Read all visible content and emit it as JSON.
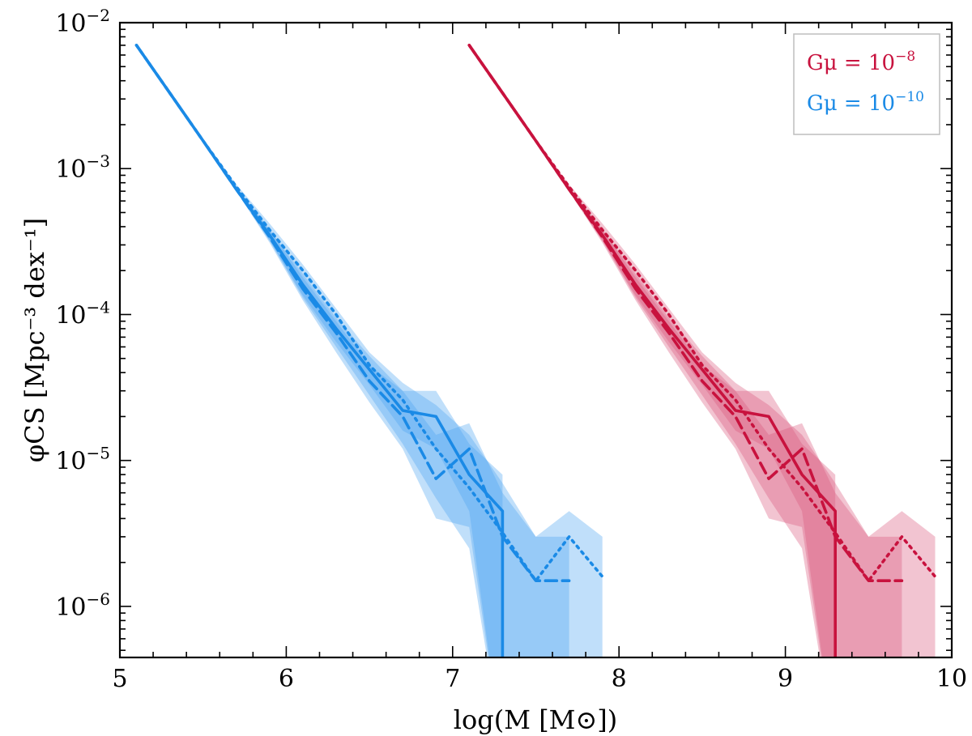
{
  "chart_data": {
    "type": "line",
    "title": "",
    "xlabel": "log(M [M⊙])",
    "ylabel": "φCS [Mpc⁻³ dex⁻¹]",
    "xlim": [
      5,
      10
    ],
    "ylim_log10": [
      -6.35,
      -2
    ],
    "yscale": "log",
    "x_ticks": [
      5,
      6,
      7,
      8,
      9,
      10
    ],
    "y_ticks": [
      {
        "base": "10",
        "exp": "−2",
        "value_log10": -2
      },
      {
        "base": "10",
        "exp": "−3",
        "value_log10": -3
      },
      {
        "base": "10",
        "exp": "−4",
        "value_log10": -4
      },
      {
        "base": "10",
        "exp": "−5",
        "value_log10": -5
      },
      {
        "base": "10",
        "exp": "−6",
        "value_log10": -6
      }
    ],
    "legend": {
      "placement": "top-right",
      "entries": [
        {
          "prefix": "Gμ = 10",
          "exp": "−8",
          "color": "#c8123e"
        },
        {
          "prefix": "Gμ = 10",
          "exp": "−10",
          "color": "#1a8ae6"
        }
      ]
    },
    "series": [
      {
        "group": "Gμ=10^-10",
        "style": "solid",
        "color": "#1a8ae6",
        "x": [
          5.1,
          5.3,
          5.5,
          5.7,
          5.9,
          6.1,
          6.3,
          6.5,
          6.7,
          6.9,
          7.1,
          7.3,
          7.3
        ],
        "y": [
          0.007,
          0.0033,
          0.00155,
          0.00072,
          0.00035,
          0.00016,
          8e-05,
          4.2e-05,
          2.2e-05,
          2e-05,
          8e-06,
          4.5e-06,
          2e-07
        ]
      },
      {
        "group": "Gμ=10^-10",
        "style": "dashed",
        "color": "#1a8ae6",
        "x": [
          5.1,
          5.3,
          5.5,
          5.7,
          5.9,
          6.1,
          6.3,
          6.5,
          6.7,
          6.9,
          7.1,
          7.3,
          7.5,
          7.7
        ],
        "y": [
          0.007,
          0.0033,
          0.00155,
          0.00072,
          0.00034,
          0.00015,
          7.5e-05,
          3.5e-05,
          2e-05,
          7.5e-06,
          1.2e-05,
          3e-06,
          1.5e-06,
          1.5e-06
        ]
      },
      {
        "group": "Gμ=10^-10",
        "style": "dotted",
        "color": "#1a8ae6",
        "x": [
          5.1,
          5.3,
          5.5,
          5.7,
          5.9,
          6.1,
          6.3,
          6.5,
          6.7,
          6.9,
          7.1,
          7.3,
          7.5,
          7.7,
          7.9
        ],
        "y": [
          0.007,
          0.0033,
          0.00155,
          0.00075,
          0.00038,
          0.0002,
          0.0001,
          4.5e-05,
          2.6e-05,
          1.2e-05,
          6.5e-06,
          3.2e-06,
          1.5e-06,
          3e-06,
          1.6e-06
        ]
      },
      {
        "group": "Gμ=10^-8",
        "style": "solid",
        "color": "#c8123e",
        "x": [
          7.1,
          7.3,
          7.5,
          7.7,
          7.9,
          8.1,
          8.3,
          8.5,
          8.7,
          8.9,
          9.1,
          9.3,
          9.3
        ],
        "y": [
          0.007,
          0.0033,
          0.00155,
          0.00072,
          0.00035,
          0.00016,
          8e-05,
          4.2e-05,
          2.2e-05,
          2e-05,
          8e-06,
          4.5e-06,
          2e-07
        ]
      },
      {
        "group": "Gμ=10^-8",
        "style": "dashed",
        "color": "#c8123e",
        "x": [
          7.1,
          7.3,
          7.5,
          7.7,
          7.9,
          8.1,
          8.3,
          8.5,
          8.7,
          8.9,
          9.1,
          9.3,
          9.5,
          9.7
        ],
        "y": [
          0.007,
          0.0033,
          0.00155,
          0.00072,
          0.00034,
          0.00015,
          7.5e-05,
          3.5e-05,
          2e-05,
          7.5e-06,
          1.2e-05,
          3e-06,
          1.5e-06,
          1.5e-06
        ]
      },
      {
        "group": "Gμ=10^-8",
        "style": "dotted",
        "color": "#c8123e",
        "x": [
          7.1,
          7.3,
          7.5,
          7.7,
          7.9,
          8.1,
          8.3,
          8.5,
          8.7,
          8.9,
          9.1,
          9.3,
          9.5,
          9.7,
          9.9
        ],
        "y": [
          0.007,
          0.0033,
          0.00155,
          0.00075,
          0.00038,
          0.0002,
          0.0001,
          4.5e-05,
          2.6e-05,
          1.2e-05,
          6.5e-06,
          3.2e-06,
          1.5e-06,
          3e-06,
          1.6e-06
        ]
      }
    ],
    "bands": [
      {
        "group": "Gμ=10^-10",
        "color": "#4aa3f0",
        "opacity": 0.35,
        "x": [
          5.1,
          5.3,
          5.5,
          5.7,
          5.9,
          6.1,
          6.3,
          6.5,
          6.7,
          6.9,
          7.1,
          7.3,
          7.5,
          7.7,
          7.9
        ],
        "low": [
          0.0068,
          0.0032,
          0.0015,
          0.0007,
          0.00032,
          0.00013,
          6e-05,
          2.8e-05,
          1.3e-05,
          5.5e-06,
          2.5e-06,
          1e-07,
          1e-07,
          1e-07,
          1e-07
        ],
        "high": [
          0.0072,
          0.0034,
          0.0016,
          0.00078,
          0.00042,
          0.00022,
          0.00011,
          5.5e-05,
          3.4e-05,
          2.4e-05,
          1.5e-05,
          7e-06,
          3e-06,
          4.5e-06,
          3e-06
        ]
      },
      {
        "group": "Gμ=10^-10",
        "color": "#4aa3f0",
        "opacity": 0.35,
        "x": [
          5.1,
          5.3,
          5.5,
          5.7,
          5.9,
          6.1,
          6.3,
          6.5,
          6.7,
          6.9,
          7.1,
          7.3,
          7.5,
          7.7
        ],
        "low": [
          0.0069,
          0.00325,
          0.00152,
          0.0007,
          0.00031,
          0.000125,
          5.5e-05,
          2.5e-05,
          1.2e-05,
          4e-06,
          3.5e-06,
          1e-07,
          1e-07,
          1e-07
        ],
        "high": [
          0.0071,
          0.00335,
          0.00158,
          0.00075,
          0.00038,
          0.00018,
          9e-05,
          4.5e-05,
          3e-05,
          1.5e-05,
          1.8e-05,
          6e-06,
          3e-06,
          3e-06
        ]
      },
      {
        "group": "Gμ=10^-10",
        "color": "#4aa3f0",
        "opacity": 0.35,
        "x": [
          5.1,
          5.3,
          5.5,
          5.7,
          5.9,
          6.1,
          6.3,
          6.5,
          6.7,
          6.9,
          7.1,
          7.3
        ],
        "low": [
          0.0069,
          0.00325,
          0.00152,
          0.0007,
          0.00032,
          0.000135,
          6.5e-05,
          3.3e-05,
          1.6e-05,
          1.2e-05,
          4.5e-06,
          1e-07
        ],
        "high": [
          0.0071,
          0.00335,
          0.00158,
          0.00074,
          0.00038,
          0.00019,
          9.5e-05,
          5.2e-05,
          3e-05,
          3e-05,
          1.3e-05,
          8e-06
        ]
      },
      {
        "group": "Gμ=10^-8",
        "color": "#d9577a",
        "opacity": 0.35,
        "x": [
          7.1,
          7.3,
          7.5,
          7.7,
          7.9,
          8.1,
          8.3,
          8.5,
          8.7,
          8.9,
          9.1,
          9.3,
          9.5,
          9.7,
          9.9
        ],
        "low": [
          0.0068,
          0.0032,
          0.0015,
          0.0007,
          0.00032,
          0.00013,
          6e-05,
          2.8e-05,
          1.3e-05,
          5.5e-06,
          2.5e-06,
          1e-07,
          1e-07,
          1e-07,
          1e-07
        ],
        "high": [
          0.0072,
          0.0034,
          0.0016,
          0.00078,
          0.00042,
          0.00022,
          0.00011,
          5.5e-05,
          3.4e-05,
          2.4e-05,
          1.5e-05,
          7e-06,
          3e-06,
          4.5e-06,
          3e-06
        ]
      },
      {
        "group": "Gμ=10^-8",
        "color": "#d9577a",
        "opacity": 0.35,
        "x": [
          7.1,
          7.3,
          7.5,
          7.7,
          7.9,
          8.1,
          8.3,
          8.5,
          8.7,
          8.9,
          9.1,
          9.3,
          9.5,
          9.7
        ],
        "low": [
          0.0069,
          0.00325,
          0.00152,
          0.0007,
          0.00031,
          0.000125,
          5.5e-05,
          2.5e-05,
          1.2e-05,
          4e-06,
          3.5e-06,
          1e-07,
          1e-07,
          1e-07
        ],
        "high": [
          0.0071,
          0.00335,
          0.00158,
          0.00075,
          0.00038,
          0.00018,
          9e-05,
          4.5e-05,
          3e-05,
          1.5e-05,
          1.8e-05,
          6e-06,
          3e-06,
          3e-06
        ]
      },
      {
        "group": "Gμ=10^-8",
        "color": "#d9577a",
        "opacity": 0.35,
        "x": [
          7.1,
          7.3,
          7.5,
          7.7,
          7.9,
          8.1,
          8.3,
          8.5,
          8.7,
          8.9,
          9.1,
          9.3
        ],
        "low": [
          0.0069,
          0.00325,
          0.00152,
          0.0007,
          0.00032,
          0.000135,
          6.5e-05,
          3.3e-05,
          1.6e-05,
          1.2e-05,
          4.5e-06,
          1e-07
        ],
        "high": [
          0.0071,
          0.00335,
          0.00158,
          0.00074,
          0.00038,
          0.00019,
          9.5e-05,
          5.2e-05,
          3e-05,
          3e-05,
          1.3e-05,
          8e-06
        ]
      }
    ]
  }
}
